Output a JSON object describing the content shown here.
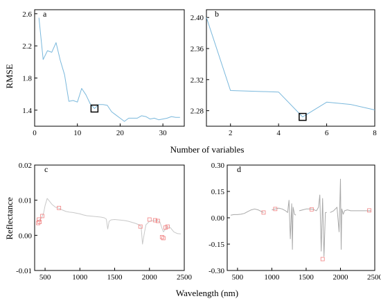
{
  "figure": {
    "rmse_label": "RMSE",
    "variables_label": "Number of variables",
    "reflectance_label": "Reflectance",
    "wavelength_label": "Wavelength (nm)"
  },
  "chart_data": [
    {
      "id": "a",
      "panel_label": "a",
      "type": "line",
      "xlim": [
        0,
        35
      ],
      "ylim": [
        1.2,
        2.65
      ],
      "xticks": [
        0,
        10,
        20,
        30
      ],
      "yticks": [
        1.4,
        1.8,
        2.2,
        2.6
      ],
      "xtick_labels": [
        "0",
        "10",
        "20",
        "30"
      ],
      "ytick_labels": [
        "1.4",
        "1.8",
        "2.2",
        "2.6"
      ],
      "series_color": "#7ab8dc",
      "x": [
        1,
        2,
        3,
        4,
        5,
        6,
        7,
        8,
        9,
        10,
        11,
        12,
        13,
        14,
        15,
        16,
        17,
        18,
        19,
        20,
        21,
        22,
        23,
        24,
        25,
        26,
        27,
        28,
        29,
        30,
        31,
        32,
        33,
        34
      ],
      "y": [
        2.55,
        2.03,
        2.14,
        2.12,
        2.24,
        2.02,
        1.84,
        1.51,
        1.52,
        1.5,
        1.67,
        1.59,
        1.48,
        1.42,
        1.47,
        1.47,
        1.46,
        1.38,
        1.34,
        1.3,
        1.26,
        1.3,
        1.3,
        1.3,
        1.33,
        1.32,
        1.29,
        1.3,
        1.28,
        1.29,
        1.3,
        1.32,
        1.31,
        1.31
      ],
      "highlight": {
        "x": 14,
        "y": 1.42
      }
    },
    {
      "id": "b",
      "panel_label": "b",
      "type": "line",
      "xlim": [
        1,
        8
      ],
      "ylim": [
        2.26,
        2.41
      ],
      "xticks": [
        2,
        4,
        6,
        8
      ],
      "yticks": [
        2.28,
        2.32,
        2.36,
        2.4
      ],
      "xtick_labels": [
        "2",
        "4",
        "6",
        "8"
      ],
      "ytick_labels": [
        "2.28",
        "2.32",
        "2.36",
        "2.40"
      ],
      "series_color": "#7ab8dc",
      "x": [
        1,
        2,
        3,
        4,
        5,
        6,
        7,
        8
      ],
      "y": [
        2.4,
        2.306,
        2.305,
        2.304,
        2.272,
        2.291,
        2.288,
        2.281
      ],
      "highlight": {
        "x": 5,
        "y": 2.272
      }
    },
    {
      "id": "c",
      "panel_label": "c",
      "type": "line",
      "xlim": [
        350,
        2500
      ],
      "ylim": [
        -0.01,
        0.02
      ],
      "xticks": [
        500,
        1000,
        1500,
        2000,
        2500
      ],
      "yticks": [
        -0.01,
        0.0,
        0.01,
        0.02
      ],
      "xtick_labels": [
        "500",
        "1000",
        "1500",
        "2000",
        "2500"
      ],
      "ytick_labels": [
        "-0.01",
        "0.00",
        "0.01",
        "0.02"
      ],
      "series_color": "#c8c8c8",
      "marker_color": "#f08080",
      "x": [
        400,
        430,
        450,
        480,
        500,
        530,
        560,
        600,
        650,
        700,
        750,
        800,
        850,
        900,
        950,
        1000,
        1050,
        1100,
        1150,
        1200,
        1250,
        1300,
        1350,
        1380,
        1400,
        1420,
        1450,
        1500,
        1550,
        1600,
        1650,
        1700,
        1750,
        1800,
        1850,
        1880,
        1900,
        1930,
        1950,
        2000,
        2050,
        2100,
        2150,
        2180,
        2200,
        2220,
        2250,
        2300,
        2350,
        2400,
        2450
      ],
      "y": [
        0.0042,
        0.0045,
        0.005,
        0.0065,
        0.0085,
        0.0105,
        0.0098,
        0.0088,
        0.008,
        0.0077,
        0.0072,
        0.0068,
        0.0066,
        0.0065,
        0.0063,
        0.0061,
        0.0058,
        0.0056,
        0.0055,
        0.0054,
        0.0053,
        0.0052,
        0.005,
        0.0046,
        0.0018,
        0.004,
        0.0044,
        0.0045,
        0.0044,
        0.0043,
        0.0042,
        0.004,
        0.0037,
        0.0034,
        0.003,
        0.0025,
        -0.0025,
        0.001,
        0.003,
        0.004,
        0.0042,
        0.0043,
        0.0038,
        0.002,
        0.001,
        0.0015,
        0.0025,
        0.0022,
        0.001,
        0.0005,
        0.0004
      ],
      "markers": [
        {
          "x": 400,
          "y": 0.0035
        },
        {
          "x": 410,
          "y": 0.0045
        },
        {
          "x": 420,
          "y": 0.0038
        },
        {
          "x": 460,
          "y": 0.0055
        },
        {
          "x": 700,
          "y": 0.0078
        },
        {
          "x": 1870,
          "y": 0.0025
        },
        {
          "x": 2000,
          "y": 0.0045
        },
        {
          "x": 2080,
          "y": 0.0043
        },
        {
          "x": 2120,
          "y": 0.0041
        },
        {
          "x": 2180,
          "y": -0.0005
        },
        {
          "x": 2200,
          "y": -0.0008
        },
        {
          "x": 2230,
          "y": 0.0022
        },
        {
          "x": 2260,
          "y": 0.0025
        }
      ]
    },
    {
      "id": "d",
      "panel_label": "d",
      "type": "line",
      "xlim": [
        350,
        2500
      ],
      "ylim": [
        -0.3,
        0.3
      ],
      "xticks": [
        500,
        1000,
        1500,
        2000,
        2500
      ],
      "yticks": [
        -0.3,
        -0.15,
        0.0,
        0.15,
        0.3
      ],
      "xtick_labels": [
        "500",
        "1000",
        "1500",
        "2000",
        "2500"
      ],
      "ytick_labels": [
        "-0.30",
        "-0.15",
        "0.00",
        "0.15",
        "0.30"
      ],
      "series_color": "#a8a8a8",
      "marker_color": "#f08080",
      "segments": [
        {
          "x": [
            400,
            450,
            500,
            550,
            600,
            650,
            700,
            750,
            800,
            850,
            880
          ],
          "y": [
            0.015,
            0.018,
            0.018,
            0.02,
            0.025,
            0.035,
            0.045,
            0.05,
            0.045,
            0.035,
            0.03
          ]
        },
        {
          "x": [
            1000,
            1050,
            1100,
            1150,
            1200,
            1230,
            1250,
            1270,
            1290,
            1300,
            1310,
            1330,
            1350
          ],
          "y": [
            0.045,
            0.05,
            0.055,
            0.05,
            0.04,
            0.03,
            0.1,
            -0.12,
            0.08,
            -0.18,
            0.06,
            0.02,
            0.015
          ]
        },
        {
          "x": [
            1400,
            1450,
            1500,
            1550,
            1600,
            1650,
            1680,
            1700,
            1720,
            1740,
            1760,
            1780,
            1800
          ],
          "y": [
            0.04,
            0.045,
            0.05,
            0.05,
            0.048,
            0.04,
            0.06,
            0.13,
            -0.19,
            0.11,
            -0.22,
            0.03,
            0.03
          ]
        },
        {
          "x": [
            1850,
            1900,
            1950,
            1980,
            2000,
            2010,
            2020,
            2040,
            2060,
            2100,
            2150,
            2200,
            2300,
            2400,
            2450
          ],
          "y": [
            0.03,
            0.04,
            0.06,
            -0.08,
            0.22,
            -0.18,
            0.05,
            0.02,
            0.04,
            0.045,
            0.04,
            0.04,
            0.04,
            0.04,
            0.04
          ]
        }
      ],
      "markers": [
        {
          "x": 880,
          "y": 0.03
        },
        {
          "x": 1050,
          "y": 0.05
        },
        {
          "x": 1580,
          "y": 0.048
        },
        {
          "x": 1740,
          "y": -0.235
        },
        {
          "x": 2420,
          "y": 0.042
        }
      ]
    }
  ]
}
